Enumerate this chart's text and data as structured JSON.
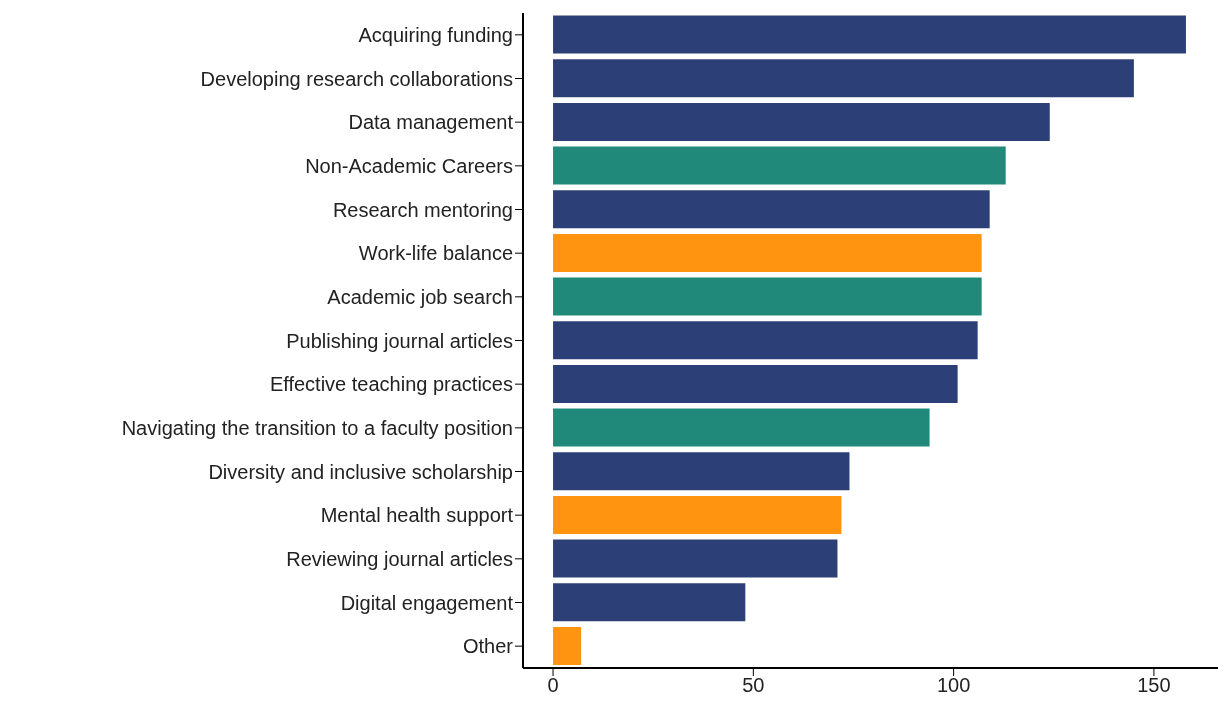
{
  "chart_data": {
    "type": "bar",
    "orientation": "horizontal",
    "categories": [
      "Acquiring funding",
      "Developing research collaborations",
      "Data management",
      "Non-Academic Careers",
      "Research mentoring",
      "Work-life balance",
      "Academic job search",
      "Publishing journal articles",
      "Effective teaching practices",
      "Navigating the transition to a faculty position",
      "Diversity and inclusive scholarship",
      "Mental health support",
      "Reviewing journal articles",
      "Digital engagement",
      "Other"
    ],
    "values": [
      158,
      145,
      124,
      113,
      109,
      107,
      107,
      106,
      101,
      94,
      74,
      72,
      71,
      48,
      7
    ],
    "colors": [
      "#2c3f77",
      "#2c3f77",
      "#2c3f77",
      "#21897a",
      "#2c3f77",
      "#ff9410",
      "#21897a",
      "#2c3f77",
      "#2c3f77",
      "#21897a",
      "#2c3f77",
      "#ff9410",
      "#2c3f77",
      "#2c3f77",
      "#ff9410"
    ],
    "xlim": [
      -7.5,
      166
    ],
    "xticks": [
      0,
      50,
      100,
      150
    ],
    "grid": false,
    "legend": false
  }
}
